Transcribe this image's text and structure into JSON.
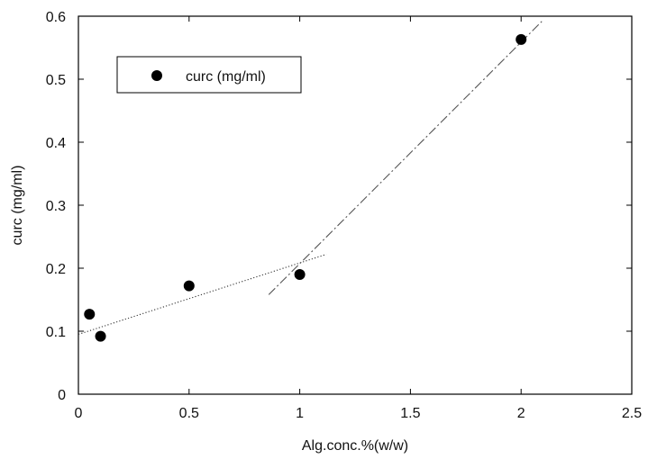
{
  "chart_data": {
    "type": "scatter",
    "title": "",
    "xlabel": "Alg.conc.%(w/w)",
    "ylabel": "curc (mg/ml)",
    "xlim": [
      0,
      2.5
    ],
    "ylim": [
      0,
      0.6
    ],
    "xticks": [
      "0",
      "0.5",
      "1",
      "1.5",
      "2",
      "2.5"
    ],
    "yticks": [
      "0",
      "0.1",
      "0.2",
      "0.3",
      "0.4",
      "0.5",
      "0.6"
    ],
    "grid": false,
    "legend_position": "top-left",
    "series": [
      {
        "name": "curc (mg/ml)",
        "x": [
          0.05,
          0.1,
          0.5,
          1.0,
          2.0
        ],
        "y": [
          0.127,
          0.092,
          0.172,
          0.19,
          0.563
        ],
        "color": "#000000"
      }
    ],
    "trend_lines": [
      {
        "style": "dotted",
        "x": [
          0,
          1.12
        ],
        "y": [
          0.095,
          0.222
        ],
        "color": "#333333"
      },
      {
        "style": "dash-dot",
        "x": [
          0.86,
          2.1
        ],
        "y": [
          0.158,
          0.594
        ],
        "color": "#555555"
      }
    ]
  }
}
